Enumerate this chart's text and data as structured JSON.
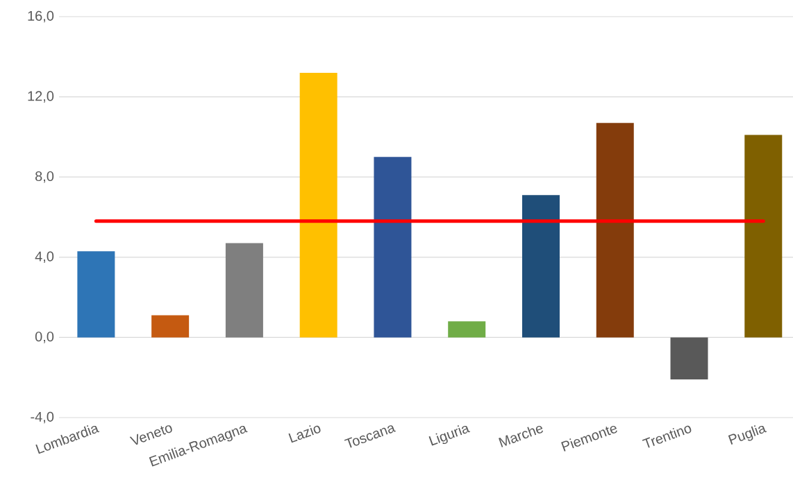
{
  "chart_data": {
    "type": "bar",
    "categories": [
      "Lombardia",
      "Veneto",
      "Emilia-Romagna",
      "Lazio",
      "Toscana",
      "Liguria",
      "Marche",
      "Piemonte",
      "Trentino",
      "Puglia"
    ],
    "values": [
      4.3,
      1.1,
      4.7,
      13.2,
      9.0,
      0.8,
      7.1,
      10.7,
      -2.1,
      10.1
    ],
    "colors": [
      "#2e75b6",
      "#c55a11",
      "#7f7f7f",
      "#ffc000",
      "#2f5597",
      "#70ad47",
      "#1f4e79",
      "#843c0c",
      "#595959",
      "#7f6000"
    ],
    "ylim": [
      -4,
      16
    ],
    "yticks": [
      {
        "value": -4,
        "label": "-4,0"
      },
      {
        "value": 0,
        "label": "0,0"
      },
      {
        "value": 4,
        "label": "4,0"
      },
      {
        "value": 8,
        "label": "8,0"
      },
      {
        "value": 12,
        "label": "12,0"
      },
      {
        "value": 16,
        "label": "16,0"
      }
    ],
    "grid": "y",
    "ref_lines": [
      {
        "axis": "y",
        "value": 5.8,
        "color": "#ff0000"
      }
    ]
  }
}
